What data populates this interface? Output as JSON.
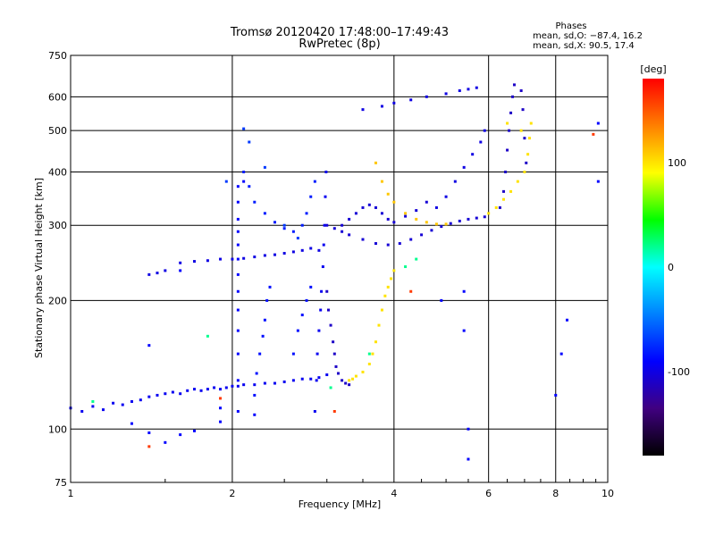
{
  "chart_data": {
    "type": "scatter",
    "title": "Tromsø 20120420 17:48:00–17:49:43",
    "subtitle": "RwPretec (8p)",
    "xlabel": "Frequency [MHz]",
    "ylabel": "Stationary phase Virtual Height [km]",
    "x_scale": "log",
    "y_scale": "log",
    "xlim": [
      1,
      10
    ],
    "ylim": [
      75,
      750
    ],
    "grid": true,
    "x_ticks": [
      1,
      2,
      4,
      6,
      8,
      10
    ],
    "x_tick_labels": [
      "1",
      "2",
      "4",
      "6",
      "8",
      "10"
    ],
    "y_ticks": [
      75,
      100,
      200,
      300,
      400,
      500,
      600,
      750
    ],
    "y_tick_labels": [
      "75",
      "100",
      "200",
      "300",
      "400",
      "500",
      "600",
      "750"
    ],
    "phases_header": "Phases",
    "phases_line_o": "mean, sd,O: −87.4, 16.2",
    "phases_line_x": "mean, sd,X:  90.5, 17.4",
    "colorbar": {
      "label": "[deg]",
      "range": [
        -180,
        180
      ],
      "ticks": [
        100,
        0,
        -100
      ],
      "tick_labels": [
        "100",
        "0",
        "-100"
      ],
      "colors": [
        "#ff0000",
        "#ff8000",
        "#ffff00",
        "#00ff00",
        "#00ffff",
        "#0080ff",
        "#0000ff",
        "#400080",
        "#000000"
      ]
    },
    "series": [
      {
        "phase": -95,
        "points": [
          [
            1.0,
            112
          ],
          [
            1.05,
            110
          ],
          [
            1.1,
            113
          ],
          [
            1.15,
            111
          ],
          [
            1.2,
            115
          ],
          [
            1.25,
            114
          ],
          [
            1.3,
            116
          ],
          [
            1.35,
            117
          ],
          [
            1.4,
            119
          ],
          [
            1.45,
            120
          ],
          [
            1.5,
            121
          ],
          [
            1.55,
            122
          ],
          [
            1.6,
            121
          ],
          [
            1.65,
            123
          ],
          [
            1.7,
            124
          ],
          [
            1.75,
            123
          ],
          [
            1.8,
            124
          ],
          [
            1.85,
            125
          ],
          [
            1.9,
            124
          ],
          [
            1.95,
            125
          ],
          [
            2.0,
            126
          ],
          [
            2.05,
            126
          ],
          [
            2.1,
            127
          ],
          [
            2.2,
            127
          ],
          [
            2.3,
            128
          ],
          [
            2.4,
            128
          ],
          [
            2.5,
            129
          ],
          [
            2.6,
            130
          ],
          [
            2.7,
            131
          ],
          [
            2.8,
            131
          ],
          [
            2.9,
            132
          ],
          [
            3.0,
            134
          ]
        ]
      },
      {
        "phase": -100,
        "points": [
          [
            1.4,
            230
          ],
          [
            1.45,
            232
          ],
          [
            1.5,
            235
          ],
          [
            1.6,
            245
          ],
          [
            1.7,
            247
          ],
          [
            1.8,
            248
          ],
          [
            1.9,
            250
          ],
          [
            2.0,
            250
          ],
          [
            2.1,
            251
          ],
          [
            2.2,
            253
          ],
          [
            2.3,
            255
          ],
          [
            2.4,
            256
          ],
          [
            2.5,
            258
          ],
          [
            2.6,
            260
          ],
          [
            2.7,
            262
          ],
          [
            2.8,
            265
          ],
          [
            2.9,
            262
          ]
        ]
      },
      {
        "phase": -90,
        "points": [
          [
            2.05,
            110
          ],
          [
            2.05,
            130
          ],
          [
            2.05,
            150
          ],
          [
            2.05,
            170
          ],
          [
            2.05,
            190
          ],
          [
            2.05,
            210
          ],
          [
            2.05,
            230
          ],
          [
            2.05,
            250
          ],
          [
            2.05,
            270
          ],
          [
            2.05,
            290
          ],
          [
            2.05,
            310
          ],
          [
            2.05,
            340
          ],
          [
            2.05,
            370
          ]
        ]
      },
      {
        "phase": -85,
        "points": [
          [
            2.2,
            120
          ],
          [
            2.22,
            135
          ],
          [
            2.25,
            150
          ],
          [
            2.28,
            165
          ],
          [
            2.3,
            180
          ],
          [
            2.32,
            200
          ],
          [
            2.35,
            215
          ],
          [
            2.6,
            150
          ],
          [
            2.65,
            170
          ],
          [
            2.7,
            185
          ],
          [
            2.75,
            200
          ],
          [
            2.8,
            215
          ]
        ]
      },
      {
        "phase": -80,
        "points": [
          [
            2.1,
            400
          ],
          [
            2.15,
            370
          ],
          [
            2.2,
            340
          ],
          [
            2.3,
            320
          ],
          [
            2.4,
            305
          ],
          [
            2.5,
            295
          ],
          [
            2.6,
            290
          ],
          [
            2.7,
            300
          ],
          [
            2.75,
            320
          ],
          [
            2.8,
            350
          ],
          [
            2.85,
            380
          ]
        ]
      },
      {
        "phase": -70,
        "points": [
          [
            1.95,
            380
          ],
          [
            2.1,
            505
          ],
          [
            2.15,
            470
          ],
          [
            2.3,
            410
          ],
          [
            2.5,
            300
          ],
          [
            2.65,
            280
          ]
        ]
      },
      {
        "phase": -95,
        "points": [
          [
            2.85,
            110
          ],
          [
            2.87,
            130
          ],
          [
            2.88,
            150
          ],
          [
            2.9,
            170
          ],
          [
            2.92,
            190
          ],
          [
            2.93,
            210
          ],
          [
            2.95,
            240
          ],
          [
            2.96,
            270
          ],
          [
            2.97,
            300
          ],
          [
            2.98,
            350
          ],
          [
            2.99,
            400
          ]
        ]
      },
      {
        "phase": -105,
        "points": [
          [
            3.0,
            300
          ],
          [
            3.1,
            295
          ],
          [
            3.2,
            290
          ],
          [
            3.3,
            285
          ],
          [
            3.5,
            278
          ],
          [
            3.7,
            272
          ],
          [
            3.9,
            270
          ],
          [
            4.1,
            272
          ],
          [
            4.3,
            278
          ],
          [
            4.5,
            285
          ],
          [
            4.7,
            292
          ],
          [
            4.9,
            298
          ],
          [
            5.1,
            303
          ],
          [
            5.3,
            307
          ],
          [
            5.5,
            310
          ],
          [
            5.7,
            312
          ],
          [
            5.9,
            314
          ]
        ]
      },
      {
        "phase": -110,
        "points": [
          [
            3.0,
            210
          ],
          [
            3.02,
            190
          ],
          [
            3.05,
            175
          ],
          [
            3.08,
            160
          ],
          [
            3.1,
            150
          ],
          [
            3.12,
            140
          ],
          [
            3.15,
            135
          ],
          [
            3.2,
            130
          ],
          [
            3.25,
            128
          ],
          [
            3.3,
            127
          ]
        ]
      },
      {
        "phase": -105,
        "points": [
          [
            3.2,
            300
          ],
          [
            3.3,
            310
          ],
          [
            3.4,
            320
          ],
          [
            3.5,
            330
          ],
          [
            3.6,
            335
          ],
          [
            3.7,
            330
          ],
          [
            3.8,
            320
          ],
          [
            3.9,
            310
          ],
          [
            4.0,
            305
          ],
          [
            4.2,
            315
          ],
          [
            4.4,
            325
          ],
          [
            4.6,
            340
          ]
        ]
      },
      {
        "phase": 100,
        "points": [
          [
            3.3,
            130
          ],
          [
            3.35,
            131
          ],
          [
            3.4,
            133
          ],
          [
            3.5,
            136
          ],
          [
            3.6,
            142
          ],
          [
            3.65,
            150
          ],
          [
            3.7,
            160
          ],
          [
            3.75,
            175
          ],
          [
            3.8,
            190
          ],
          [
            3.85,
            205
          ],
          [
            3.9,
            215
          ],
          [
            3.95,
            225
          ],
          [
            4.0,
            235
          ]
        ]
      },
      {
        "phase": 110,
        "points": [
          [
            3.7,
            420
          ],
          [
            3.8,
            380
          ],
          [
            3.9,
            355
          ],
          [
            4.0,
            340
          ],
          [
            4.2,
            320
          ],
          [
            4.4,
            310
          ],
          [
            4.6,
            305
          ],
          [
            4.8,
            302
          ],
          [
            5.0,
            302
          ]
        ]
      },
      {
        "phase": -100,
        "points": [
          [
            4.8,
            330
          ],
          [
            5.0,
            350
          ],
          [
            5.2,
            380
          ],
          [
            5.4,
            410
          ],
          [
            5.6,
            440
          ],
          [
            5.8,
            470
          ],
          [
            5.9,
            500
          ]
        ]
      },
      {
        "phase": -100,
        "points": [
          [
            3.5,
            560
          ],
          [
            3.8,
            570
          ],
          [
            4.0,
            580
          ],
          [
            4.3,
            590
          ],
          [
            4.6,
            600
          ],
          [
            5.0,
            610
          ],
          [
            5.3,
            620
          ],
          [
            5.5,
            625
          ],
          [
            5.7,
            630
          ]
        ]
      },
      {
        "phase": -110,
        "points": [
          [
            6.3,
            330
          ],
          [
            6.4,
            360
          ],
          [
            6.45,
            400
          ],
          [
            6.5,
            450
          ],
          [
            6.55,
            500
          ],
          [
            6.6,
            550
          ],
          [
            6.65,
            600
          ],
          [
            6.7,
            640
          ],
          [
            6.9,
            620
          ],
          [
            6.95,
            560
          ],
          [
            7.0,
            480
          ],
          [
            7.05,
            420
          ]
        ]
      },
      {
        "phase": 100,
        "points": [
          [
            6.0,
            320
          ],
          [
            6.2,
            330
          ],
          [
            6.4,
            345
          ],
          [
            6.6,
            360
          ],
          [
            6.8,
            380
          ],
          [
            7.0,
            400
          ],
          [
            7.1,
            440
          ],
          [
            7.15,
            480
          ],
          [
            6.5,
            520
          ],
          [
            6.9,
            500
          ],
          [
            7.2,
            520
          ]
        ]
      },
      {
        "phase": -90,
        "points": [
          [
            1.3,
            103
          ],
          [
            1.4,
            98
          ],
          [
            1.5,
            93
          ],
          [
            1.6,
            97
          ],
          [
            1.7,
            99
          ],
          [
            1.9,
            104
          ],
          [
            2.2,
            108
          ],
          [
            5.5,
            85
          ],
          [
            5.5,
            100
          ],
          [
            8.0,
            120
          ],
          [
            8.2,
            150
          ],
          [
            8.4,
            180
          ],
          [
            9.6,
            380
          ],
          [
            9.6,
            520
          ],
          [
            4.9,
            200
          ],
          [
            5.4,
            170
          ],
          [
            5.4,
            210
          ],
          [
            2.1,
            380
          ],
          [
            1.6,
            235
          ],
          [
            1.4,
            157
          ],
          [
            1.9,
            112
          ]
        ]
      },
      {
        "phase": 20,
        "points": [
          [
            1.1,
            116
          ],
          [
            1.8,
            165
          ],
          [
            3.05,
            125
          ],
          [
            3.6,
            150
          ],
          [
            4.2,
            240
          ],
          [
            4.4,
            250
          ]
        ]
      },
      {
        "phase": 160,
        "points": [
          [
            1.4,
            91
          ],
          [
            1.9,
            118
          ],
          [
            3.1,
            110
          ],
          [
            4.3,
            210
          ],
          [
            9.4,
            490
          ]
        ]
      }
    ]
  }
}
